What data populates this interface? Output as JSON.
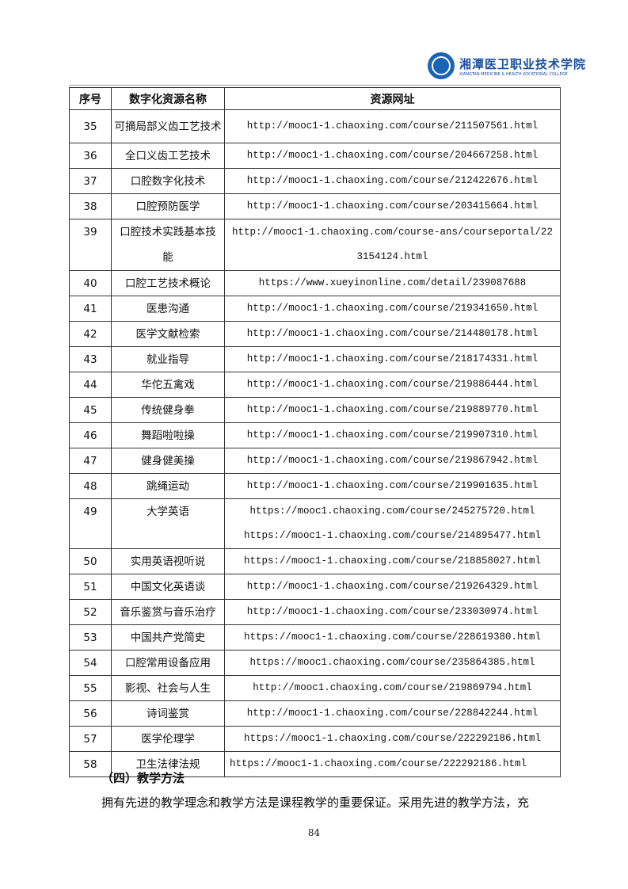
{
  "header": {
    "logo_cn": "湘潭医卫职业技术学院",
    "logo_en": "XIANGTAN MEDICINE & HEALTH VOCATIONAL COLLEGE"
  },
  "table": {
    "columns": [
      "序号",
      "数字化资源名称",
      "资源网址"
    ],
    "rows": [
      {
        "no": "35",
        "name": "可摘局部义齿工艺技术",
        "urls": [
          "http://mooc1-1.chaoxing.com/course/211507561.html"
        ]
      },
      {
        "no": "36",
        "name": "全口义齿工艺技术",
        "urls": [
          "http://mooc1-1.chaoxing.com/course/204667258.html"
        ]
      },
      {
        "no": "37",
        "name": "口腔数字化技术",
        "urls": [
          "http://mooc1-1.chaoxing.com/course/212422676.html"
        ]
      },
      {
        "no": "38",
        "name": "口腔预防医学",
        "urls": [
          "http://mooc1-1.chaoxing.com/course/203415664.html"
        ]
      },
      {
        "no": "39",
        "name": "口腔技术实践基本技能",
        "urls": [
          "http://mooc1-1.chaoxing.com/course-ans/courseportal/223154124.html"
        ]
      },
      {
        "no": "40",
        "name": "口腔工艺技术概论",
        "urls": [
          "https://www.xueyinonline.com/detail/239087688"
        ]
      },
      {
        "no": "41",
        "name": "医患沟通",
        "urls": [
          "http://mooc1-1.chaoxing.com/course/219341650.html"
        ]
      },
      {
        "no": "42",
        "name": "医学文献检索",
        "urls": [
          "http://mooc1-1.chaoxing.com/course/214480178.html"
        ]
      },
      {
        "no": "43",
        "name": "就业指导",
        "urls": [
          "http://mooc1-1.chaoxing.com/course/218174331.html"
        ]
      },
      {
        "no": "44",
        "name": "华佗五禽戏",
        "urls": [
          "http://mooc1-1.chaoxing.com/course/219886444.html"
        ]
      },
      {
        "no": "45",
        "name": "传统健身拳",
        "urls": [
          "http://mooc1-1.chaoxing.com/course/219889770.html"
        ]
      },
      {
        "no": "46",
        "name": "舞蹈啦啦操",
        "urls": [
          "http://mooc1-1.chaoxing.com/course/219907310.html"
        ]
      },
      {
        "no": "47",
        "name": "健身健美操",
        "urls": [
          "http://mooc1-1.chaoxing.com/course/219867942.html"
        ]
      },
      {
        "no": "48",
        "name": "跳绳运动",
        "urls": [
          "http://mooc1-1.chaoxing.com/course/219901635.html"
        ]
      },
      {
        "no": "49",
        "name": "大学英语",
        "urls": [
          "https://mooc1.chaoxing.com/course/245275720.html",
          "https://mooc1-1.chaoxing.com/course/214895477.html"
        ]
      },
      {
        "no": "50",
        "name": "实用英语视听说",
        "urls": [
          "https://mooc1-1.chaoxing.com/course/218858027.html"
        ]
      },
      {
        "no": "51",
        "name": "中国文化英语谈",
        "urls": [
          "http://mooc1-1.chaoxing.com/course/219264329.html"
        ]
      },
      {
        "no": "52",
        "name": "音乐鉴赏与音乐治疗",
        "urls": [
          "http://mooc1-1.chaoxing.com/course/233030974.html"
        ]
      },
      {
        "no": "53",
        "name": "中国共产党简史",
        "urls": [
          "https://mooc1-1.chaoxing.com/course/228619380.html"
        ]
      },
      {
        "no": "54",
        "name": "口腔常用设备应用",
        "urls": [
          "https://mooc1.chaoxing.com/course/235864385.html"
        ]
      },
      {
        "no": "55",
        "name": "影视、社会与人生",
        "urls": [
          "http://mooc1.chaoxing.com/course/219869794.html"
        ]
      },
      {
        "no": "56",
        "name": "诗词鉴赏",
        "urls": [
          "http://mooc1-1.chaoxing.com/course/228842244.html"
        ]
      },
      {
        "no": "57",
        "name": "医学伦理学",
        "urls": [
          "https://mooc1-1.chaoxing.com/course/222292186.html"
        ]
      },
      {
        "no": "58",
        "name": "卫生法律法规",
        "urls": [
          "https://mooc1-1.chaoxing.com/course/222292186.html"
        ]
      }
    ]
  },
  "section_heading": "（四）教学方法",
  "paragraph": "拥有先进的教学理念和教学方法是课程教学的重要保证。采用先进的教学方法，充",
  "page_number": "84"
}
